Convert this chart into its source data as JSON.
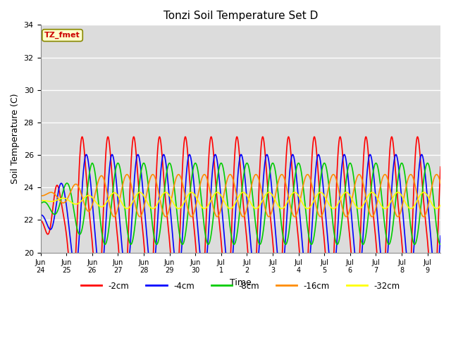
{
  "title": "Tonzi Soil Temperature Set D",
  "xlabel": "Time",
  "ylabel": "Soil Temperature (C)",
  "ylim": [
    20,
    34
  ],
  "series": [
    {
      "label": "-2cm",
      "color": "#ff0000",
      "lw": 1.2
    },
    {
      "label": "-4cm",
      "color": "#0000ff",
      "lw": 1.2
    },
    {
      "label": "-8cm",
      "color": "#00cc00",
      "lw": 1.2
    },
    {
      "label": "-16cm",
      "color": "#ff8c00",
      "lw": 1.2
    },
    {
      "label": "-32cm",
      "color": "#ffff00",
      "lw": 1.2
    }
  ],
  "annotation_label": "TZ_fmet",
  "annotation_color": "#cc0000",
  "annotation_bg": "#ffffcc",
  "bg_color": "#dcdcdc",
  "xtick_labels": [
    "Jun 24",
    "Jun 25",
    "Jun 26",
    "Jun 27",
    "Jun 28",
    "Jun 29",
    "Jun 30",
    "Jul 1",
    "Jul 2",
    "Jul 3",
    "Jul 4",
    "Jul 5",
    "Jul 6",
    "Jul 7",
    "Jul 8",
    "Jul 9"
  ]
}
